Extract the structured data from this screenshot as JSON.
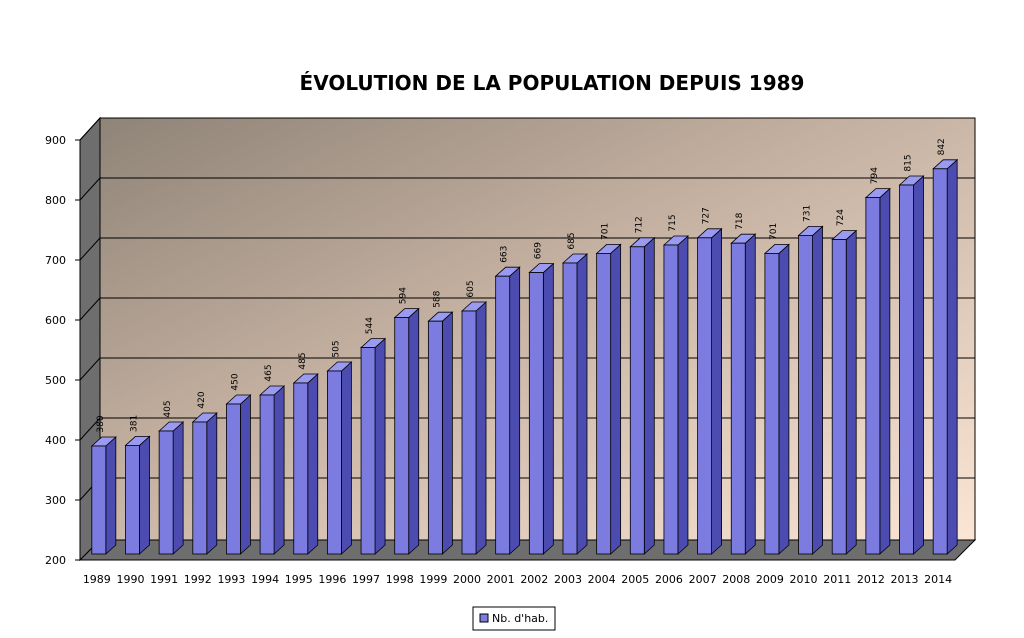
{
  "chart_data": {
    "type": "bar3d",
    "title": "ÉVOLUTION DE LA POPULATION DEPUIS 1989",
    "categories": [
      "1989",
      "1990",
      "1991",
      "1992",
      "1993",
      "1994",
      "1995",
      "1996",
      "1997",
      "1998",
      "1999",
      "2000",
      "2001",
      "2002",
      "2003",
      "2004",
      "2005",
      "2006",
      "2007",
      "2008",
      "2009",
      "2010",
      "2011",
      "2012",
      "2013",
      "2014"
    ],
    "series": [
      {
        "name": "Nb. d'hab.",
        "color": "#7b7be0",
        "values": [
          380,
          381,
          405,
          420,
          450,
          465,
          485,
          505,
          544,
          594,
          588,
          605,
          663,
          669,
          685,
          701,
          712,
          715,
          727,
          718,
          701,
          731,
          724,
          794,
          815,
          842
        ]
      }
    ],
    "ylim": [
      200,
      900
    ],
    "yticks": [
      200,
      300,
      400,
      500,
      600,
      700,
      800,
      900
    ],
    "grid": true,
    "legend": "bottom"
  }
}
